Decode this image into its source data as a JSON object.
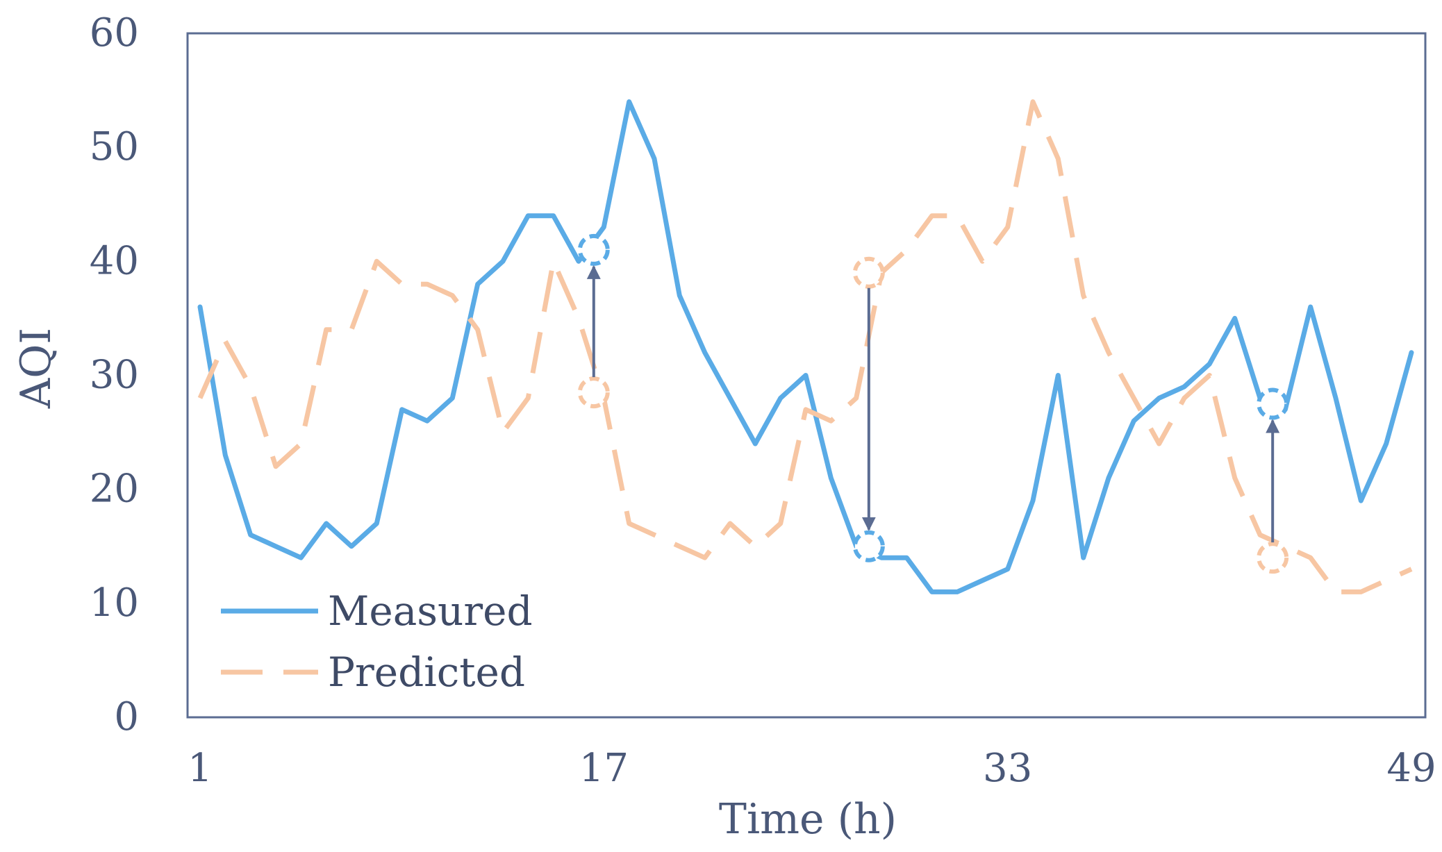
{
  "chart_data": {
    "type": "line",
    "xlabel": "Time (h)",
    "ylabel": "AQI",
    "xlim": [
      1,
      49
    ],
    "ylim": [
      0,
      60
    ],
    "x_ticks": [
      1,
      17,
      33,
      49
    ],
    "y_ticks": [
      0,
      10,
      20,
      30,
      40,
      50,
      60
    ],
    "grid": false,
    "legend_position": "bottom-left",
    "x": [
      1,
      2,
      3,
      4,
      5,
      6,
      7,
      8,
      9,
      10,
      11,
      12,
      13,
      14,
      15,
      16,
      17,
      18,
      19,
      20,
      21,
      22,
      23,
      24,
      25,
      26,
      27,
      28,
      29,
      30,
      31,
      32,
      33,
      34,
      35,
      36,
      37,
      38,
      39,
      40,
      41,
      42,
      43,
      44,
      45,
      46,
      47,
      48,
      49
    ],
    "series": [
      {
        "name": "Measured",
        "color": "#5aabe6",
        "style": "solid",
        "values": [
          36,
          23,
          16,
          15,
          14,
          17,
          15,
          17,
          27,
          26,
          28,
          38,
          40,
          44,
          44,
          40,
          43,
          54,
          49,
          37,
          32,
          28,
          24,
          28,
          30,
          21,
          15,
          14,
          14,
          11,
          11,
          12,
          13,
          19,
          30,
          14,
          21,
          26,
          28,
          29,
          31,
          35,
          28,
          27,
          36,
          28,
          19,
          24,
          32
        ]
      },
      {
        "name": "Predicted",
        "color": "#f7c6a3",
        "style": "dashed",
        "values": [
          28,
          33,
          29,
          22,
          24,
          34,
          34,
          40,
          38,
          38,
          37,
          34,
          25,
          28,
          40,
          35,
          28,
          17,
          16,
          15,
          14,
          17,
          15,
          17,
          27,
          26,
          28,
          39,
          41,
          44,
          44,
          40,
          43,
          54,
          49,
          37,
          32,
          28,
          24,
          28,
          30,
          21,
          16,
          15,
          14,
          11,
          11,
          12,
          13
        ]
      }
    ],
    "annotations": [
      {
        "x": 16.6,
        "from": 28.5,
        "to": 41
      },
      {
        "x": 27.5,
        "from": 39,
        "to": 15
      },
      {
        "x": 43.5,
        "from": 14,
        "to": 27.5
      }
    ]
  }
}
